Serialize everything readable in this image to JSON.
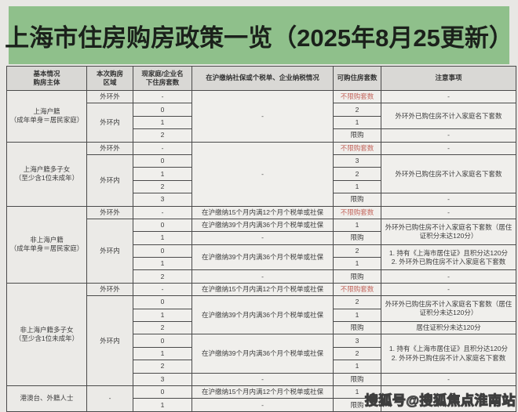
{
  "title": "上海市住房购房政策一览（2025年8月25更新）",
  "watermark": "搜狐号@搜狐焦点淮南站",
  "colors": {
    "banner_green": "#8fc08b",
    "unlimited_red": "#c3655c",
    "header_gray": "#d9d8d5",
    "cell_bg": "#f0efec",
    "border": "#4a4a4a"
  },
  "table": {
    "headers": [
      "基本情况\n购房主体",
      "本次购房\n区域",
      "现家庭/企业名\n下住房套数",
      "在沪缴纳社保或个税单、企业纳税情况",
      "可购住房套数",
      "注意事项"
    ],
    "rows": [
      {
        "group_start": true,
        "cells": [
          {
            "t": "上海户籍\n（成年单身＝居民家庭）",
            "rs": 4,
            "cls": "subject"
          },
          {
            "t": "外环外",
            "cls": "area"
          },
          {
            "t": "-"
          },
          {
            "t": "-",
            "rs": 4
          },
          {
            "t": "不限购套数",
            "cls": "red"
          },
          {
            "t": "-"
          }
        ]
      },
      {
        "cells": [
          {
            "t": "外环内",
            "rs": 3,
            "cls": "area"
          },
          {
            "t": "0"
          },
          {
            "t": "2"
          },
          {
            "t": "外环外已购住房不计入家庭名下套数",
            "rs": 2,
            "cls": "note"
          }
        ]
      },
      {
        "cells": [
          {
            "t": "1"
          },
          {
            "t": "1"
          }
        ]
      },
      {
        "cells": [
          {
            "t": "2"
          },
          {
            "t": "限购"
          },
          {
            "t": "-"
          }
        ]
      },
      {
        "group_start": true,
        "cells": [
          {
            "t": "上海户籍多子女\n（至少含1位未成年）",
            "rs": 5,
            "cls": "subject"
          },
          {
            "t": "外环外",
            "cls": "area"
          },
          {
            "t": "-"
          },
          {
            "t": "-",
            "rs": 5
          },
          {
            "t": "不限购套数",
            "cls": "red"
          },
          {
            "t": "-"
          }
        ]
      },
      {
        "cells": [
          {
            "t": "外环内",
            "rs": 4,
            "cls": "area"
          },
          {
            "t": "0"
          },
          {
            "t": "3"
          },
          {
            "t": "外环外已购住房不计入家庭名下套数",
            "rs": 3,
            "cls": "note"
          }
        ]
      },
      {
        "cells": [
          {
            "t": "1"
          },
          {
            "t": "2"
          }
        ]
      },
      {
        "cells": [
          {
            "t": "2"
          },
          {
            "t": "1"
          }
        ]
      },
      {
        "cells": [
          {
            "t": "3"
          },
          {
            "t": "限购"
          },
          {
            "t": "-"
          }
        ]
      },
      {
        "group_start": true,
        "cells": [
          {
            "t": "非上海户籍\n（成年单身＝居民家庭）",
            "rs": 6,
            "cls": "subject"
          },
          {
            "t": "外环外",
            "cls": "area"
          },
          {
            "t": "-"
          },
          {
            "t": "在沪缴纳15个月内满12个月个税单或社保"
          },
          {
            "t": "不限购套数",
            "cls": "red"
          },
          {
            "t": "-"
          }
        ]
      },
      {
        "cells": [
          {
            "t": "外环内",
            "rs": 5,
            "cls": "area"
          },
          {
            "t": "0"
          },
          {
            "t": "在沪缴纳39个月内满36个月个税单或社保"
          },
          {
            "t": "1"
          },
          {
            "t": "外环外已购住房不计入家庭名下套数（居住证积分未达120分）",
            "rs": 2,
            "cls": "note"
          }
        ]
      },
      {
        "cells": [
          {
            "t": "1"
          },
          {
            "t": "-"
          },
          {
            "t": "限购"
          }
        ]
      },
      {
        "cells": [
          {
            "t": "0"
          },
          {
            "t": "在沪缴纳39个月内满36个月个税单或社保",
            "rs": 2
          },
          {
            "t": "2"
          },
          {
            "t": "1. 持有《上海市居住证》且积分达120分\n2. 外环外已购住房不计入家庭名下套数",
            "rs": 2,
            "cls": "note"
          }
        ]
      },
      {
        "cells": [
          {
            "t": "1"
          },
          {
            "t": "1"
          }
        ]
      },
      {
        "cells": [
          {
            "t": "2"
          },
          {
            "t": "-"
          },
          {
            "t": "限购"
          },
          {
            "t": "-"
          }
        ]
      },
      {
        "group_start": true,
        "cells": [
          {
            "t": "非上海户籍多子女\n（至少含1位未成年）",
            "rs": 8,
            "cls": "subject"
          },
          {
            "t": "外环外",
            "cls": "area"
          },
          {
            "t": "-"
          },
          {
            "t": "在沪缴纳15个月内满12个月个税单或社保"
          },
          {
            "t": "不限购套数",
            "cls": "red"
          },
          {
            "t": "-"
          }
        ]
      },
      {
        "cells": [
          {
            "t": "外环内",
            "rs": 7,
            "cls": "area"
          },
          {
            "t": "0"
          },
          {
            "t": "在沪缴纳39个月内满36个月个税单或社保",
            "rs": 3
          },
          {
            "t": "2"
          },
          {
            "t": "外环外已购住房不计入家庭名下套数（居住证积分未达120分）",
            "rs": 2,
            "cls": "note"
          }
        ]
      },
      {
        "cells": [
          {
            "t": "1"
          },
          {
            "t": "1"
          }
        ]
      },
      {
        "cells": [
          {
            "t": "2"
          },
          {
            "t": "限购"
          },
          {
            "t": "居住证积分未达120分",
            "cls": "note"
          }
        ]
      },
      {
        "cells": [
          {
            "t": "0"
          },
          {
            "t": "在沪缴纳39个月内满36个月个税单或社保",
            "rs": 3
          },
          {
            "t": "3"
          },
          {
            "t": "1. 持有《上海市居住证》且积分达120分\n2. 外环外已购住房不计入家庭名下套数",
            "rs": 3,
            "cls": "note"
          }
        ]
      },
      {
        "cells": [
          {
            "t": "1"
          },
          {
            "t": "2"
          }
        ]
      },
      {
        "cells": [
          {
            "t": "2"
          },
          {
            "t": "1"
          }
        ]
      },
      {
        "cells": [
          {
            "t": "3"
          },
          {
            "t": "-"
          },
          {
            "t": "限购"
          },
          {
            "t": "-"
          }
        ]
      },
      {
        "group_start": true,
        "cells": [
          {
            "t": "港澳台、外籍人士",
            "rs": 2,
            "cls": "subject"
          },
          {
            "t": "-",
            "rs": 2,
            "cls": "area"
          },
          {
            "t": "0"
          },
          {
            "t": "在沪缴纳15个月内满12个月个税单或社保"
          },
          {
            "t": "1"
          },
          {
            "t": "",
            "rs": 2
          }
        ]
      },
      {
        "cells": [
          {
            "t": "1"
          },
          {
            "t": "-"
          },
          {
            "t": "限购"
          }
        ]
      }
    ]
  }
}
